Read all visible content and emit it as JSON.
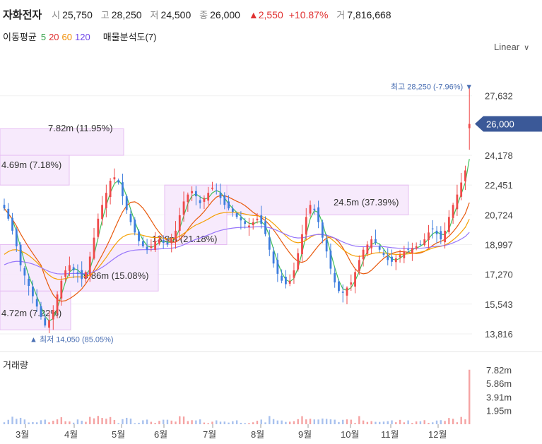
{
  "header": {
    "name": "자화전자",
    "open_label": "시",
    "open": "25,750",
    "high_label": "고",
    "high": "28,250",
    "low_label": "저",
    "low": "24,500",
    "close_label": "종",
    "close": "26,000",
    "change": "▲2,550",
    "change_pct": "+10.87%",
    "volume_label": "거",
    "volume": "7,816,668"
  },
  "indicators": {
    "ma_label": "이동평균",
    "ma5": "5",
    "ma20": "20",
    "ma60": "60",
    "ma120": "120",
    "vp_label": "매물분석도(7)",
    "colors": {
      "ma5": "#2f9e44",
      "ma20": "#e03131",
      "ma60": "#f08c00",
      "ma120": "#7048e8"
    }
  },
  "scale_selector": "Linear",
  "chart_data": {
    "type": "candlestick",
    "price_axis_ticks": [
      "27,632",
      "24,178",
      "22,451",
      "20,724",
      "18,997",
      "17,270",
      "15,543",
      "13,816"
    ],
    "price_axis_values": [
      27632,
      24178,
      22451,
      20724,
      18997,
      17270,
      15543,
      13816
    ],
    "ylim": [
      13200,
      29300
    ],
    "current_price_label": "26,000",
    "current_price": 26000,
    "max_marker": {
      "text": "최고 28,250 (-7.96%) ▼",
      "value": 28250
    },
    "min_marker": {
      "text": "▲ 최저 14,050 (85.05%)",
      "value": 14050
    },
    "months": [
      "3월",
      "4월",
      "5월",
      "6월",
      "7월",
      "8월",
      "9월",
      "10월",
      "11월",
      "12월"
    ],
    "volume_profile": [
      {
        "label": "7.82m (11.95%)",
        "lo": 24178,
        "hi": 25720,
        "fraction": 1.0
      },
      {
        "label": "4.69m (7.18%)",
        "lo": 22451,
        "hi": 24178,
        "fraction": 0.6
      },
      {
        "label": "13.9m (21.18%)",
        "lo": 18997,
        "hi": 22451,
        "fraction": 1.0
      },
      {
        "label": "24.5m (37.39%)",
        "lo": 20724,
        "hi": 22451,
        "fraction": 1.0
      },
      {
        "label": "9.86m (15.08%)",
        "lo": 16300,
        "hi": 18997,
        "fraction": 0.8
      },
      {
        "label": "4.72m (7.22%)",
        "lo": 14050,
        "hi": 16300,
        "fraction": 0.4
      }
    ],
    "volume_label": "거래량",
    "volume_ticks": [
      "7.82m",
      "5.86m",
      "3.91m",
      "1.95m"
    ],
    "volume_tick_values": [
      7.82,
      5.86,
      3.91,
      1.95
    ],
    "volume_max": 8.2,
    "closes": [
      21100,
      20500,
      19800,
      18900,
      17800,
      17200,
      16600,
      16000,
      15400,
      14800,
      14300,
      14600,
      15200,
      16100,
      16900,
      17500,
      17800,
      17500,
      17300,
      17000,
      17400,
      18300,
      19400,
      20500,
      21300,
      22000,
      22700,
      22900,
      22600,
      21800,
      21000,
      20300,
      19700,
      19200,
      18900,
      18700,
      18900,
      19200,
      19300,
      19100,
      19000,
      19300,
      19800,
      20700,
      21500,
      21900,
      22100,
      21800,
      21400,
      21700,
      22000,
      22300,
      22100,
      21700,
      21300,
      21100,
      20900,
      20600,
      20400,
      20200,
      20100,
      20300,
      20500,
      20200,
      19600,
      18700,
      17900,
      17300,
      16900,
      16700,
      16900,
      17500,
      18500,
      19600,
      20600,
      21300,
      21000,
      20300,
      19400,
      18600,
      17600,
      16800,
      16300,
      16200,
      16500,
      16800,
      17400,
      18100,
      18700,
      19000,
      19300,
      19100,
      18700,
      18400,
      18100,
      18000,
      18200,
      18400,
      18600,
      18700,
      18800,
      18900,
      19000,
      19300,
      19700,
      19900,
      19600,
      19300,
      19800,
      20600,
      21300,
      21900,
      22600,
      23300,
      26000
    ]
  }
}
